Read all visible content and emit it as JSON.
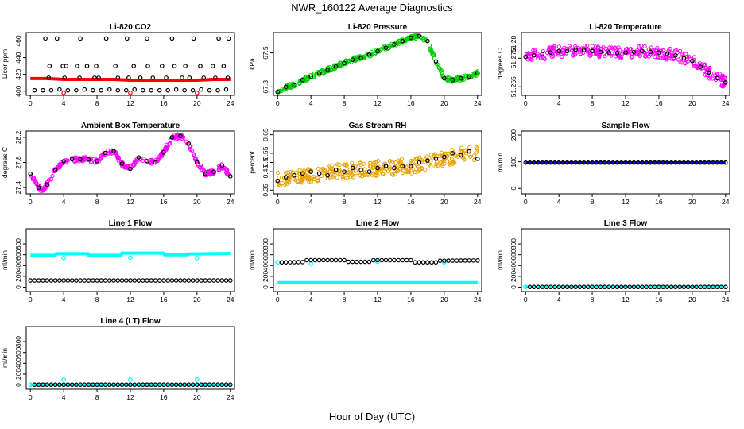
{
  "page": {
    "title": "NWR_160122  Average Diagnostics",
    "x_axis_title": "Hour of Day (UTC)"
  },
  "chart_data": [
    {
      "id": "co2",
      "type": "scatter",
      "title": "Li-820 CO2",
      "ylabel": "Licor ppm",
      "xlim": [
        -0.5,
        24.5
      ],
      "ylim": [
        395,
        470
      ],
      "xticks": [
        0,
        4,
        8,
        12,
        16,
        20,
        24
      ],
      "yticks": [
        400,
        420,
        440,
        460
      ],
      "series": [
        {
          "kind": "line",
          "color": "#ff0000",
          "width": 4,
          "x": [
            0,
            2,
            4,
            6,
            8,
            10,
            12,
            14,
            16,
            18,
            20,
            22,
            24
          ],
          "y": [
            415,
            415,
            414,
            414,
            414,
            414,
            413,
            413,
            413,
            413,
            413,
            414,
            414
          ]
        },
        {
          "kind": "points",
          "color": "#ff0000",
          "x": [
            4,
            12,
            20
          ],
          "y": [
            398,
            398,
            398
          ]
        },
        {
          "kind": "points",
          "color": "#000000",
          "x": [
            0.5,
            1.5,
            2.5,
            3.5,
            4.5,
            5.5,
            6.5,
            7.5,
            8.5,
            9.5,
            10.5,
            11.5,
            12.5,
            13.5,
            14.5,
            15.5,
            16.5,
            17.5,
            18.5,
            19.5,
            20.5,
            21.5,
            22.5,
            23.5,
            2.3,
            3.9,
            4.3,
            5.6,
            6.8,
            7.9,
            10.2,
            12.4,
            14.1,
            15.8,
            17.3,
            18.6,
            20.4,
            21.9,
            23.2,
            2.2,
            4.1,
            5.9,
            7.7,
            8.2,
            10.5,
            11.8,
            13.2,
            14.7,
            16.3,
            18.2,
            19.1,
            20.8,
            22.2,
            23.7,
            1.8,
            3.2,
            6.0,
            9.1,
            11.6,
            14.0,
            17.0,
            19.6,
            22.6,
            23.8
          ],
          "y": [
            401,
            401,
            401,
            402,
            401,
            401,
            402,
            401,
            401,
            402,
            401,
            401,
            402,
            401,
            401,
            401,
            401,
            402,
            401,
            401,
            402,
            401,
            401,
            402,
            430,
            430,
            430,
            430,
            430,
            430,
            430,
            430,
            430,
            430,
            430,
            430,
            430,
            430,
            430,
            416,
            416,
            416,
            416,
            416,
            416,
            416,
            416,
            416,
            416,
            416,
            416,
            416,
            416,
            416,
            463,
            463,
            463,
            463,
            463,
            463,
            463,
            463,
            463,
            463
          ]
        }
      ]
    },
    {
      "id": "pressure",
      "type": "scatter",
      "title": "Li-820 Pressure",
      "ylabel": "kPa",
      "xlim": [
        -0.5,
        24.5
      ],
      "ylim": [
        67.25,
        67.62
      ],
      "xticks": [
        0,
        4,
        8,
        12,
        16,
        20,
        24
      ],
      "yticks": [
        67.3,
        67.5
      ],
      "series": [
        {
          "kind": "band",
          "color": "#00cc00",
          "spread": 0.012,
          "x": [
            0,
            1,
            2,
            3,
            4,
            5,
            6,
            7,
            8,
            9,
            10,
            11,
            12,
            13,
            14,
            15,
            16,
            17,
            18,
            19,
            20,
            21,
            22,
            23,
            24
          ],
          "y": [
            67.27,
            67.3,
            67.31,
            67.34,
            67.36,
            67.38,
            67.4,
            67.42,
            67.44,
            67.46,
            67.47,
            67.49,
            67.51,
            67.53,
            67.55,
            67.57,
            67.59,
            67.6,
            67.57,
            67.45,
            67.35,
            67.34,
            67.35,
            67.36,
            67.38
          ]
        },
        {
          "kind": "points",
          "color": "#000000",
          "x": [
            0,
            1,
            2,
            3,
            4,
            5,
            6,
            7,
            8,
            9,
            10,
            11,
            12,
            13,
            14,
            15,
            16,
            17,
            18,
            19,
            20,
            21,
            22,
            23,
            24
          ],
          "y": [
            67.27,
            67.3,
            67.31,
            67.34,
            67.36,
            67.38,
            67.4,
            67.42,
            67.44,
            67.46,
            67.47,
            67.49,
            67.51,
            67.53,
            67.55,
            67.57,
            67.59,
            67.6,
            67.57,
            67.45,
            67.35,
            67.34,
            67.35,
            67.36,
            67.38
          ]
        }
      ]
    },
    {
      "id": "temp",
      "type": "scatter",
      "title": "Li-820 Temperature",
      "ylabel": "degrees C",
      "xlim": [
        -0.5,
        24.5
      ],
      "ylim": [
        51.262,
        51.284
      ],
      "xticks": [
        0,
        4,
        8,
        12,
        16,
        20,
        24
      ],
      "yticks": [
        51.265,
        51.275,
        51.28
      ],
      "series": [
        {
          "kind": "band",
          "color": "#ff00ff",
          "spread": 0.002,
          "x": [
            0,
            1,
            2,
            3,
            4,
            5,
            6,
            7,
            8,
            9,
            10,
            11,
            12,
            13,
            14,
            15,
            16,
            17,
            18,
            19,
            20,
            21,
            22,
            23,
            24
          ],
          "y": [
            51.2755,
            51.276,
            51.2765,
            51.277,
            51.2775,
            51.2775,
            51.278,
            51.2778,
            51.2775,
            51.2772,
            51.277,
            51.2768,
            51.277,
            51.2772,
            51.2775,
            51.2772,
            51.277,
            51.2765,
            51.276,
            51.275,
            51.274,
            51.272,
            51.27,
            51.268,
            51.2665
          ]
        },
        {
          "kind": "points",
          "color": "#000000",
          "x": [
            0,
            1,
            2,
            3,
            4,
            5,
            6,
            7,
            8,
            9,
            10,
            11,
            12,
            13,
            14,
            15,
            16,
            17,
            18,
            19,
            20,
            21,
            22,
            23,
            24
          ],
          "y": [
            51.2755,
            51.276,
            51.2765,
            51.277,
            51.2775,
            51.2775,
            51.278,
            51.2778,
            51.2775,
            51.2772,
            51.277,
            51.2768,
            51.277,
            51.2772,
            51.2775,
            51.2772,
            51.277,
            51.2765,
            51.276,
            51.275,
            51.274,
            51.272,
            51.27,
            51.268,
            51.2665
          ]
        }
      ]
    },
    {
      "id": "ambient",
      "type": "scatter",
      "title": "Ambient Box Temperature",
      "ylabel": "degrees C",
      "xlim": [
        -0.5,
        24.5
      ],
      "ylim": [
        27.3,
        28.3
      ],
      "xticks": [
        0,
        4,
        8,
        12,
        16,
        20,
        24
      ],
      "yticks": [
        27.4,
        27.8,
        28.2
      ],
      "series": [
        {
          "kind": "band",
          "color": "#ff00ff",
          "spread": 0.035,
          "x": [
            0,
            0.5,
            1,
            1.5,
            2,
            3,
            4,
            5,
            6,
            7,
            8,
            9,
            10,
            11,
            12,
            13,
            14,
            15,
            16,
            17,
            18,
            19,
            20,
            21,
            22,
            23,
            24
          ],
          "y": [
            27.62,
            27.52,
            27.4,
            27.36,
            27.45,
            27.68,
            27.82,
            27.85,
            27.85,
            27.85,
            27.82,
            27.95,
            27.98,
            27.78,
            27.7,
            27.88,
            27.82,
            27.8,
            27.96,
            28.2,
            28.22,
            28.1,
            27.8,
            27.62,
            27.65,
            27.75,
            27.58
          ]
        },
        {
          "kind": "points",
          "color": "#000000",
          "x": [
            0,
            1,
            2,
            3,
            4,
            5,
            6,
            7,
            8,
            9,
            10,
            11,
            12,
            13,
            14,
            15,
            16,
            17,
            18,
            19,
            20,
            21,
            22,
            23,
            24
          ],
          "y": [
            27.62,
            27.4,
            27.45,
            27.68,
            27.82,
            27.85,
            27.85,
            27.85,
            27.82,
            27.95,
            27.98,
            27.78,
            27.7,
            27.88,
            27.82,
            27.8,
            27.96,
            28.2,
            28.22,
            28.1,
            27.8,
            27.62,
            27.65,
            27.75,
            27.58
          ]
        }
      ]
    },
    {
      "id": "rh",
      "type": "scatter",
      "title": "Gas Stream RH",
      "ylabel": "percent",
      "xlim": [
        -0.5,
        24.5
      ],
      "ylim": [
        0.33,
        0.67
      ],
      "xticks": [
        0,
        4,
        8,
        12,
        16,
        20,
        24
      ],
      "yticks": [
        0.35,
        0.45,
        0.5,
        0.55,
        0.65
      ],
      "series": [
        {
          "kind": "band",
          "color": "#e8a000",
          "spread": 0.04,
          "x": [
            0,
            1,
            2,
            3,
            4,
            5,
            6,
            7,
            8,
            9,
            10,
            11,
            12,
            13,
            14,
            15,
            16,
            17,
            18,
            19,
            20,
            21,
            22,
            23,
            24
          ],
          "y": [
            0.41,
            0.42,
            0.42,
            0.43,
            0.43,
            0.44,
            0.44,
            0.45,
            0.45,
            0.46,
            0.46,
            0.46,
            0.47,
            0.47,
            0.47,
            0.48,
            0.48,
            0.49,
            0.5,
            0.51,
            0.52,
            0.53,
            0.54,
            0.55,
            0.55
          ]
        },
        {
          "kind": "points",
          "color": "#000000",
          "x": [
            0,
            1,
            2,
            3,
            4,
            5,
            6,
            7,
            8,
            9,
            10,
            11,
            12,
            13,
            14,
            15,
            16,
            17,
            18,
            19,
            20,
            21,
            22,
            23,
            24
          ],
          "y": [
            0.4,
            0.42,
            0.43,
            0.44,
            0.45,
            0.44,
            0.43,
            0.46,
            0.45,
            0.47,
            0.46,
            0.45,
            0.47,
            0.48,
            0.47,
            0.48,
            0.48,
            0.5,
            0.51,
            0.52,
            0.53,
            0.55,
            0.54,
            0.56,
            0.52
          ]
        }
      ]
    },
    {
      "id": "sample_flow",
      "type": "scatter",
      "title": "Sample Flow",
      "ylabel": "ml/min",
      "xlim": [
        -0.5,
        24.5
      ],
      "ylim": [
        -20,
        215
      ],
      "xticks": [
        0,
        4,
        8,
        12,
        16,
        20,
        24
      ],
      "yticks": [
        0,
        100,
        200
      ],
      "series": [
        {
          "kind": "line",
          "color": "#0000ff",
          "width": 3,
          "x": [
            0,
            24
          ],
          "y": [
            97,
            97
          ]
        },
        {
          "kind": "points",
          "color": "#000000",
          "step": 0.5,
          "x": [
            0,
            24
          ],
          "y": [
            97,
            97
          ]
        }
      ]
    },
    {
      "id": "line1",
      "type": "scatter",
      "title": "Line 1 Flow",
      "ylabel": "ml/min",
      "xlim": [
        -0.5,
        24.5
      ],
      "ylim": [
        -80,
        1080
      ],
      "xticks": [
        0,
        4,
        8,
        12,
        16,
        20,
        24
      ],
      "yticks": [
        0,
        200,
        400,
        600,
        800
      ],
      "series": [
        {
          "kind": "line",
          "color": "#00ffff",
          "width": 4,
          "x": [
            0,
            3,
            3.1,
            6.9,
            7,
            10.9,
            11,
            16,
            16.1,
            18.9,
            19,
            24
          ],
          "y": [
            590,
            590,
            620,
            620,
            590,
            590,
            630,
            630,
            600,
            600,
            615,
            625
          ]
        },
        {
          "kind": "points",
          "color": "#00ffff",
          "x": [
            4,
            12,
            20
          ],
          "y": [
            540,
            545,
            540
          ]
        },
        {
          "kind": "points",
          "color": "#000000",
          "step": 0.5,
          "x": [
            0,
            24
          ],
          "y": [
            125,
            125
          ]
        }
      ]
    },
    {
      "id": "line2",
      "type": "scatter",
      "title": "Line 2 Flow",
      "ylabel": "ml/min",
      "xlim": [
        -0.5,
        24.5
      ],
      "ylim": [
        -80,
        1080
      ],
      "xticks": [
        0,
        4,
        8,
        12,
        16,
        20,
        24
      ],
      "yticks": [
        0,
        200,
        400,
        600,
        800
      ],
      "series": [
        {
          "kind": "line",
          "color": "#00ffff",
          "width": 4,
          "x": [
            0,
            24
          ],
          "y": [
            85,
            85
          ]
        },
        {
          "kind": "points",
          "color": "#00ffff",
          "x": [
            0,
            4,
            12,
            20
          ],
          "y": [
            460,
            435,
            470,
            460
          ]
        },
        {
          "kind": "points",
          "color": "#000000",
          "step": 0.5,
          "x": [
            0.5,
            3,
            3.1,
            8,
            8.1,
            11,
            11.1,
            16,
            16.1,
            19,
            19.1,
            24
          ],
          "y": [
            460,
            465,
            500,
            500,
            470,
            470,
            500,
            500,
            460,
            460,
            490,
            495
          ]
        }
      ]
    },
    {
      "id": "line3",
      "type": "scatter",
      "title": "Line 3 Flow",
      "ylabel": "ml/min",
      "xlim": [
        -0.5,
        24.5
      ],
      "ylim": [
        -80,
        1080
      ],
      "xticks": [
        0,
        4,
        8,
        12,
        16,
        20,
        24
      ],
      "yticks": [
        0,
        200,
        400,
        600,
        800
      ],
      "series": [
        {
          "kind": "line",
          "color": "#00ffff",
          "width": 3,
          "x": [
            0,
            24
          ],
          "y": [
            5,
            5
          ]
        },
        {
          "kind": "points",
          "color": "#00ffff",
          "x": [
            0
          ],
          "y": [
            5
          ]
        },
        {
          "kind": "points",
          "color": "#000000",
          "step": 0.5,
          "x": [
            0.5,
            24
          ],
          "y": [
            5,
            5
          ]
        }
      ]
    },
    {
      "id": "line4",
      "type": "scatter",
      "title": "Line 4 (LT) Flow",
      "ylabel": "ml/min",
      "xlim": [
        -0.5,
        24.5
      ],
      "ylim": [
        -80,
        1080
      ],
      "xticks": [
        0,
        4,
        8,
        12,
        16,
        20,
        24
      ],
      "yticks": [
        0,
        200,
        400,
        600,
        800
      ],
      "series": [
        {
          "kind": "line",
          "color": "#00ffff",
          "width": 3,
          "x": [
            0,
            24
          ],
          "y": [
            5,
            5
          ]
        },
        {
          "kind": "points",
          "color": "#00ffff",
          "x": [
            0,
            4,
            12,
            20
          ],
          "y": [
            5,
            100,
            100,
            100
          ]
        },
        {
          "kind": "points",
          "color": "#000000",
          "step": 0.5,
          "x": [
            0.5,
            24
          ],
          "y": [
            5,
            5
          ]
        }
      ]
    }
  ]
}
